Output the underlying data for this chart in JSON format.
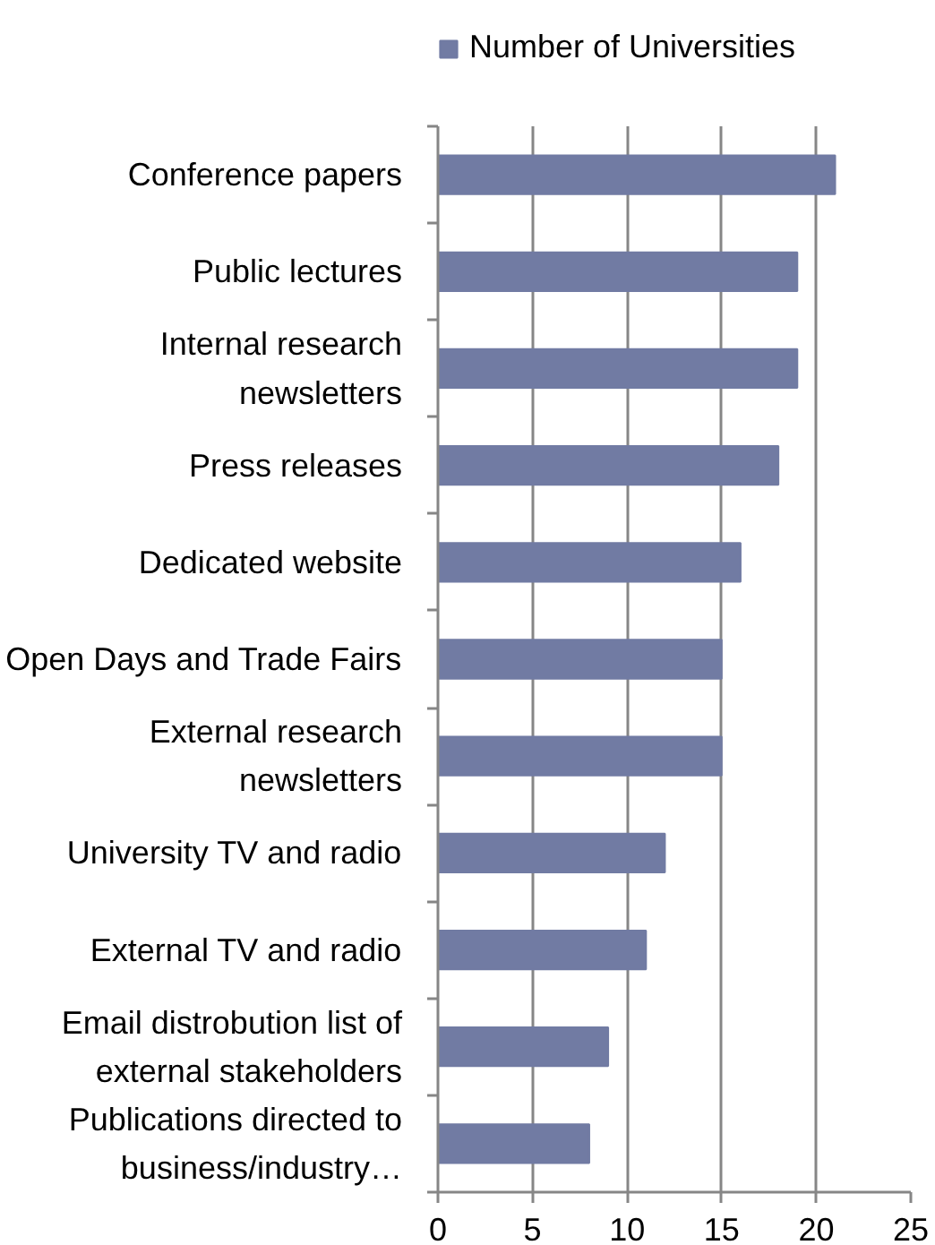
{
  "chart_data": {
    "type": "bar",
    "orientation": "horizontal",
    "categories": [
      "Conference papers",
      "Public lectures",
      "Internal research newsletters",
      "Press releases",
      "Dedicated website",
      "Open Days and Trade Fairs",
      "External research newsletters",
      "University TV and radio",
      "External TV and radio",
      "Email distrobution list of external stakeholders",
      "Publications directed to business/industry…"
    ],
    "series": [
      {
        "name": "Number of Universities",
        "color": "#717ba3",
        "values": [
          21,
          19,
          19,
          18,
          16,
          15,
          15,
          12,
          11,
          9,
          8
        ]
      }
    ],
    "xlim": [
      0,
      25
    ],
    "xticks": [
      0,
      5,
      10,
      15,
      20,
      25
    ],
    "grid": "x",
    "legend": "top"
  }
}
